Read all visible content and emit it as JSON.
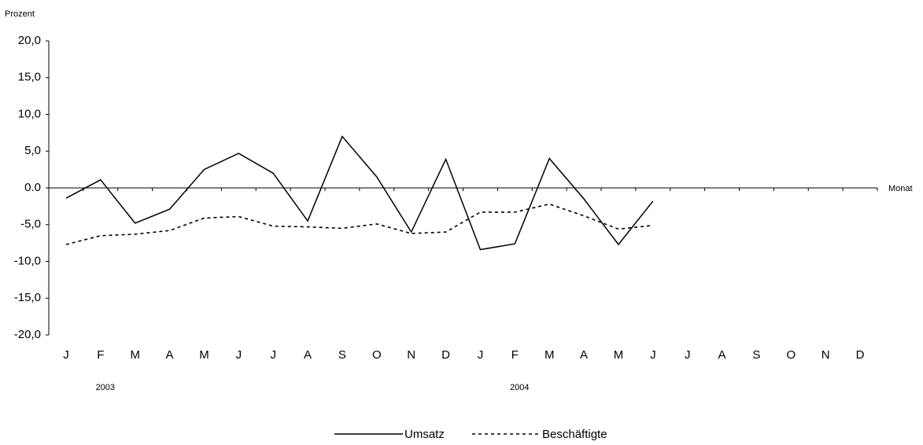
{
  "chart_data": {
    "type": "line",
    "y_label": "Prozent",
    "x_label": "Monat",
    "categories": [
      "J",
      "F",
      "M",
      "A",
      "M",
      "J",
      "J",
      "A",
      "S",
      "O",
      "N",
      "D",
      "J",
      "F",
      "M",
      "A",
      "M",
      "J",
      "J",
      "A",
      "S",
      "O",
      "N",
      "D"
    ],
    "years": [
      "2003",
      "2004"
    ],
    "series": [
      {
        "name": "Umsatz",
        "color": "#000000",
        "dash": "solid",
        "values": [
          -1.4,
          1.1,
          -4.8,
          -2.9,
          2.5,
          4.7,
          2.0,
          -4.5,
          7.0,
          1.5,
          -6.0,
          3.9,
          -8.4,
          -7.6,
          4.0,
          -1.5,
          -7.7,
          -1.8,
          null,
          null,
          null,
          null,
          null,
          null
        ]
      },
      {
        "name": "Beschäftigte",
        "color": "#000000",
        "dash": "dashed",
        "values": [
          -7.7,
          -6.5,
          -6.3,
          -5.8,
          -4.1,
          -3.9,
          -5.2,
          -5.3,
          -5.5,
          -4.9,
          -6.2,
          -6.0,
          -3.3,
          -3.3,
          -2.2,
          -3.8,
          -5.6,
          -5.1,
          null,
          null,
          null,
          null,
          null,
          null
        ]
      }
    ],
    "ylim": [
      -20,
      20
    ],
    "yticks": [
      {
        "value": -20,
        "label": "-20,0"
      },
      {
        "value": -15,
        "label": "-15,0"
      },
      {
        "value": -10,
        "label": "-10,0"
      },
      {
        "value": -5,
        "label": "-5,0"
      },
      {
        "value": 0,
        "label": "0.0"
      },
      {
        "value": 5,
        "label": "5,0"
      },
      {
        "value": 10,
        "label": "10,0"
      },
      {
        "value": 15,
        "label": "15,0"
      },
      {
        "value": 20,
        "label": "20,0"
      }
    ],
    "grid": false,
    "legend": "bottom"
  }
}
